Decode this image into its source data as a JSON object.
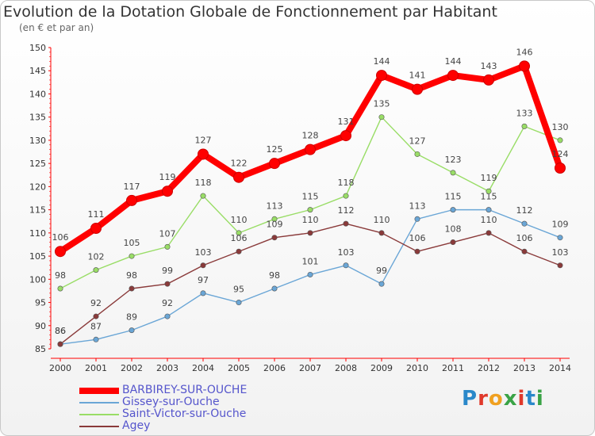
{
  "header": {
    "title": "Evolution de la Dotation Globale de Fonctionnement par Habitant",
    "subtitle": "(en € et par an)"
  },
  "logo": {
    "letters": [
      "P",
      "r",
      "o",
      "x",
      "i",
      "t",
      "i"
    ]
  },
  "chart_data": {
    "type": "line",
    "title": "Evolution de la Dotation Globale de Fonctionnement par Habitant",
    "subtitle": "(en € et par an)",
    "xlabel": "",
    "ylabel": "",
    "x": [
      2000,
      2001,
      2002,
      2003,
      2004,
      2005,
      2006,
      2007,
      2008,
      2009,
      2010,
      2011,
      2012,
      2013,
      2014
    ],
    "ylim": [
      85,
      150
    ],
    "yticks": [
      85,
      90,
      95,
      100,
      105,
      110,
      115,
      120,
      125,
      130,
      135,
      140,
      145,
      150
    ],
    "grid": false,
    "legend_position": "bottom-left",
    "series": [
      {
        "name": "BARBIREY-SUR-OUCHE",
        "color": "#ff0000",
        "values": [
          106,
          111,
          117,
          119,
          127,
          122,
          125,
          128,
          131,
          144,
          141,
          144,
          143,
          146,
          124
        ],
        "labels": [
          "106",
          "111",
          "117",
          "119",
          "127",
          "122",
          "125",
          "128",
          "131",
          "144",
          "141",
          "144",
          "143",
          "146",
          "124"
        ]
      },
      {
        "name": "Gissey-sur-Ouche",
        "color": "#6aa6d6",
        "values": [
          86,
          87,
          89,
          92,
          97,
          95,
          98,
          101,
          103,
          99,
          113,
          115,
          115,
          112,
          109
        ],
        "labels": [
          "86",
          "87",
          "89",
          "92",
          "97",
          "95",
          "98",
          "101",
          "103",
          "99",
          "113",
          "115",
          "115",
          "112",
          "109"
        ]
      },
      {
        "name": "Saint-Victor-sur-Ouche",
        "color": "#99dd66",
        "values": [
          98,
          102,
          105,
          107,
          118,
          110,
          113,
          115,
          118,
          135,
          127,
          123,
          119,
          133,
          130
        ],
        "labels": [
          "98",
          "102",
          "105",
          "107",
          "118",
          "110",
          "113",
          "115",
          "118",
          "135",
          "127",
          "123",
          "119",
          "133",
          "130"
        ]
      },
      {
        "name": "Agey",
        "color": "#8a3a3a",
        "values": [
          86,
          92,
          98,
          99,
          103,
          106,
          109,
          110,
          112,
          110,
          106,
          108,
          110,
          106,
          103
        ],
        "labels": [
          "86",
          "92",
          "98",
          "99",
          "103",
          "106",
          "109",
          "110",
          "112",
          "110",
          "106",
          "108",
          "110",
          "106",
          "103"
        ]
      }
    ]
  }
}
